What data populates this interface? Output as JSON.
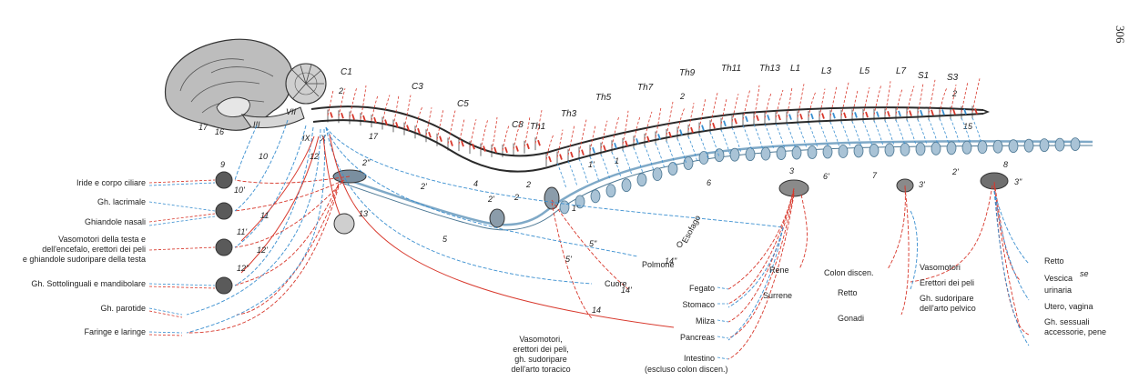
{
  "page_number": "306",
  "colors": {
    "sympathetic": "#d8382c",
    "parasympathetic": "#3a8fd0",
    "cord": "#2a2a2a",
    "chain": "#7fa9c7",
    "ganglion": "#6f6f6f"
  },
  "segments": [
    "C1",
    "C3",
    "C5",
    "C8",
    "Th1",
    "Th3",
    "Th5",
    "Th7",
    "Th9",
    "Th11",
    "Th13",
    "L1",
    "L3",
    "L5",
    "L7",
    "S1",
    "S3"
  ],
  "cranial_nerves": [
    "III",
    "VII",
    "IX",
    "X"
  ],
  "numbers": {
    "n2a": "2",
    "n2b": "2",
    "n2c": "2",
    "n2d": "2",
    "n2e": "2",
    "n2dp": "2\"",
    "n2p": "2'",
    "n2pb": "2'",
    "n2pc": "2'",
    "n1": "1",
    "n1p": "1'",
    "n1pb": "1'",
    "n3": "3",
    "n3p": "3'",
    "n3dp": "3\"",
    "n4": "4",
    "n5": "5",
    "n5p": "5'",
    "n5dp": "5\"",
    "n6": "6",
    "n6p": "6'",
    "n7": "7",
    "n8": "8",
    "n9": "9",
    "n10": "10",
    "n10p": "10'",
    "n11": "11",
    "n11p": "11'",
    "n12": "12",
    "n12p": "12'",
    "n12dp": "12\"",
    "n13": "13",
    "n14": "14",
    "n14p": "14'",
    "n14dp": "14\"",
    "n15": "15",
    "n16": "16",
    "n17": "17",
    "n17b": "17"
  },
  "labels": {
    "iride": "Iride e corpo ciliare",
    "lacrimale": "Gh. lacrimale",
    "nasali": "Ghiandole nasali",
    "vaso_testa_1": "Vasomotori della testa e",
    "vaso_testa_2": "dell'encefalo, erettori dei peli",
    "vaso_testa_3": "e ghiandole sudoripare della testa",
    "sottolinguali": "Gh. Sottolinguali e mandibolare",
    "parotide": "Gh. parotide",
    "faringe": "Faringe e laringe",
    "cuore": "Cuore",
    "polmone": "Polmone",
    "esofago": "Esofago",
    "o_label": "O",
    "vaso_tor_1": "Vasomotori,",
    "vaso_tor_2": "erettori dei peli,",
    "vaso_tor_3": "gh. sudoripare",
    "vaso_tor_4": "dell'arto toracico",
    "fegato": "Fegato",
    "stomaco": "Stomaco",
    "milza": "Milza",
    "pancreas": "Pancreas",
    "intestino": "Intestino",
    "intestino_note": "(escluso colon discen.)",
    "rene": "Rene",
    "surrene": "Surrene",
    "colon": "Colon discen.",
    "retto_mid": "Retto",
    "gonadi": "Gonadi",
    "vasomotori_p": "Vasomotori",
    "erettori_p": "Erettori dei peli",
    "gh_sud_1": "Gh. sudoripare",
    "gh_sud_2": "dell'arto pelvico",
    "retto_r": "Retto",
    "vescica_1": "Vescica",
    "vescica_se": "se",
    "vescica_2": "urinaria",
    "utero": "Utero, vagina",
    "gh_sess_1": "Gh. sessuali",
    "gh_sess_2": "accessorie, pene"
  }
}
